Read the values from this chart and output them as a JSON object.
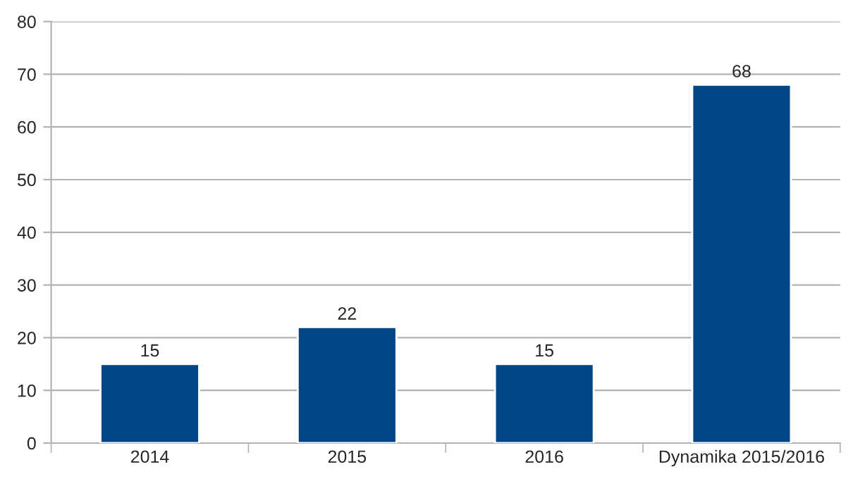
{
  "chart_data": {
    "type": "bar",
    "categories": [
      "2014",
      "2015",
      "2016",
      "Dynamika 2015/2016"
    ],
    "values": [
      15,
      22,
      15,
      68
    ],
    "color": "#004586",
    "ylim": [
      0,
      80
    ],
    "yticks": [
      0,
      10,
      20,
      30,
      40,
      50,
      60,
      70,
      80
    ],
    "grid": "y",
    "data_labels": true
  }
}
